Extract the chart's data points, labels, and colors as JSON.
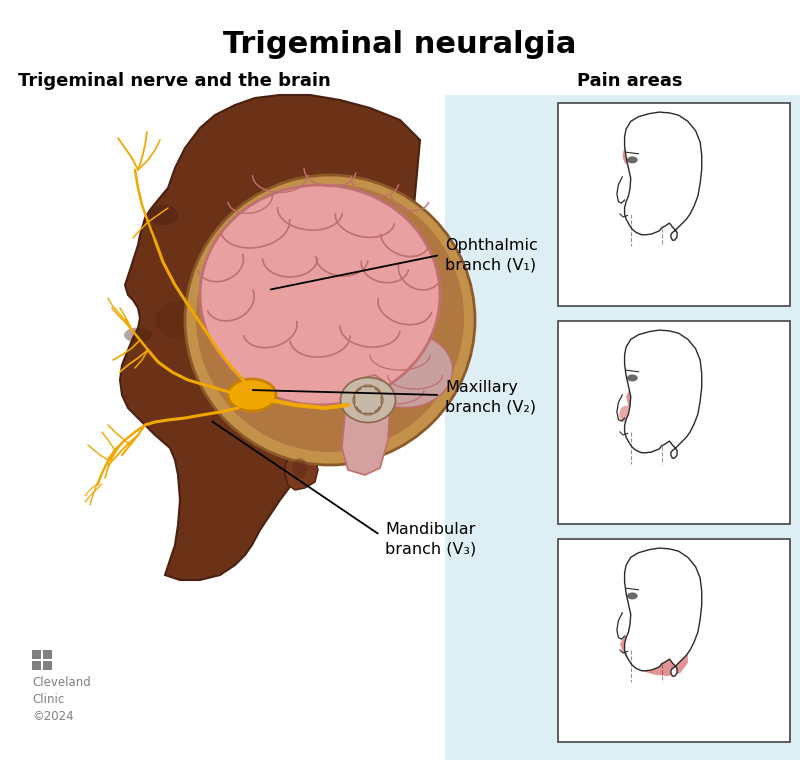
{
  "title": "Trigeminal neuralgia",
  "title_fontsize": 22,
  "title_fontweight": "bold",
  "left_subtitle": "Trigeminal nerve and the brain",
  "right_subtitle": "Pain areas",
  "subtitle_fontsize": 13,
  "subtitle_fontweight": "bold",
  "bg_color": "#ffffff",
  "panel_bg_color": "#deeef5",
  "branch_label_fontsize": 11.5,
  "line_color": "#1a1a1a",
  "nerve_color": "#f0a800",
  "nerve_color_dark": "#c88000",
  "brain_color": "#e8a0a0",
  "brain_dark": "#c07070",
  "skin_color_dark": "#6b3218",
  "skin_color_mid": "#7a3a1e",
  "skin_color_light": "#8b4520",
  "skull_inner": "#b8854a",
  "pain_color": "#d97070",
  "pain_alpha": 0.75,
  "cc_gray": "#808080",
  "copyright_fontsize": 8.5
}
